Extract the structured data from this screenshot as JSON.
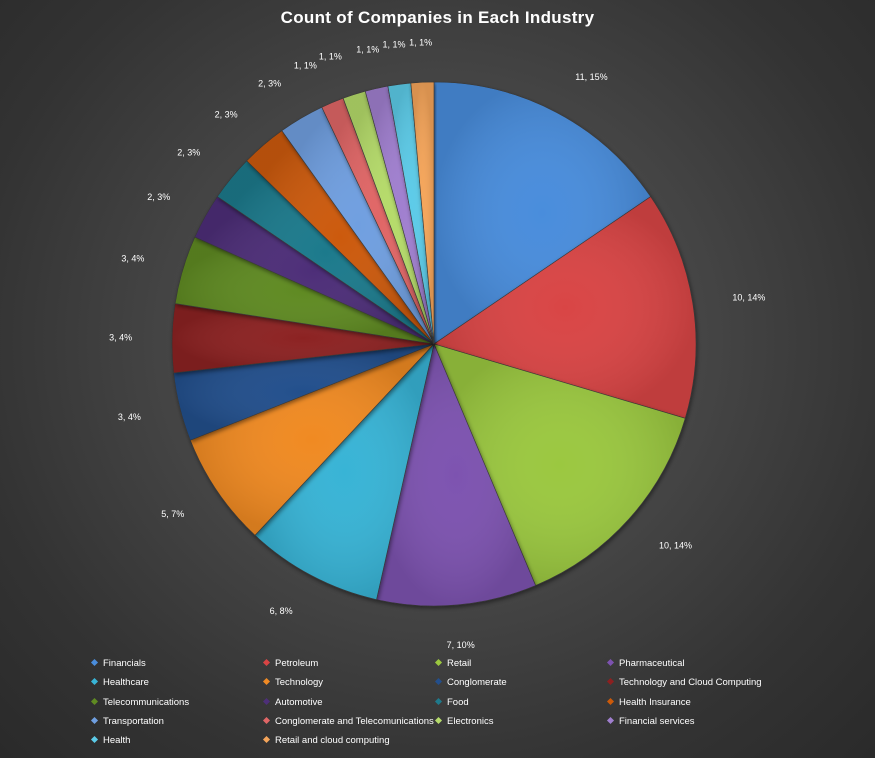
{
  "chart_data": {
    "type": "pie",
    "title": "Count of Companies in Each Industry",
    "legend_position": "bottom",
    "slices": [
      {
        "label": "Financials",
        "value": 11,
        "data_label": "11, 15%",
        "color": "#4a8ddc"
      },
      {
        "label": "Petroleum",
        "value": 10,
        "data_label": "10, 14%",
        "color": "#d94444"
      },
      {
        "label": "Retail",
        "value": 10,
        "data_label": "10, 14%",
        "color": "#9bc83f"
      },
      {
        "label": "Pharmaceutical",
        "value": 7,
        "data_label": "7, 10%",
        "color": "#7d52b0"
      },
      {
        "label": "Healthcare",
        "value": 6,
        "data_label": "6, 8%",
        "color": "#38b4d6"
      },
      {
        "label": "Technology",
        "value": 5,
        "data_label": "5, 7%",
        "color": "#f08a24"
      },
      {
        "label": "Conglomerate",
        "value": 3,
        "data_label": "3, 4%",
        "color": "#234f8c"
      },
      {
        "label": "Technology and Cloud Computing",
        "value": 3,
        "data_label": "3, 4%",
        "color": "#8c2020"
      },
      {
        "label": "Telecommunications",
        "value": 3,
        "data_label": "3, 4%",
        "color": "#5f8a22"
      },
      {
        "label": "Automotive",
        "value": 2,
        "data_label": "2, 3%",
        "color": "#4d2f78"
      },
      {
        "label": "Food",
        "value": 2,
        "data_label": "2, 3%",
        "color": "#1f7a8c"
      },
      {
        "label": "Health Insurance",
        "value": 2,
        "data_label": "2, 3%",
        "color": "#cc5a0a"
      },
      {
        "label": "Transportation",
        "value": 2,
        "data_label": "2, 3%",
        "color": "#6f9fe0"
      },
      {
        "label": "Conglomerate and Telecomunications",
        "value": 1,
        "data_label": "1, 1%",
        "color": "#e06666"
      },
      {
        "label": "Electronics",
        "value": 1,
        "data_label": "1, 1%",
        "color": "#b5db6b"
      },
      {
        "label": "Financial services",
        "value": 1,
        "data_label": "1, 1%",
        "color": "#a07fcf"
      },
      {
        "label": "Health",
        "value": 1,
        "data_label": "1, 1%",
        "color": "#5ccbe8"
      },
      {
        "label": "Retail and cloud computing",
        "value": 1,
        "data_label": "1, 1%",
        "color": "#f5a55a"
      }
    ]
  }
}
